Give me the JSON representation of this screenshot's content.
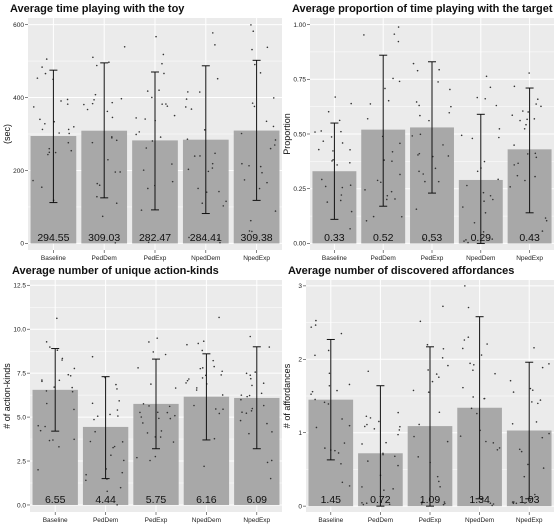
{
  "chart_data": [
    {
      "type": "bar",
      "title": "Average time playing with the toy",
      "xlabel": "",
      "ylabel": "(sec)",
      "categories": [
        "Baseline",
        "PedDem",
        "PedExp",
        "NpedDem",
        "NpedExp"
      ],
      "values": [
        294.55,
        309.03,
        282.47,
        284.41,
        309.38
      ],
      "value_labels": [
        "294.55",
        "309.03",
        "282.47",
        "284.41",
        "309.38"
      ],
      "error_low": [
        112,
        125,
        92,
        82,
        118
      ],
      "error_high": [
        475,
        495,
        470,
        487,
        502
      ],
      "ylim": [
        -18,
        618
      ],
      "yticks": [
        0,
        200,
        400,
        600
      ],
      "ytick_labels": [
        "0",
        "200",
        "400",
        "600"
      ],
      "grid": true,
      "points": "individual data points (jittered)"
    },
    {
      "type": "bar",
      "title": "Average proportion of time playing with the target",
      "xlabel": "",
      "ylabel": "Proportion",
      "categories": [
        "Baseline",
        "PedDem",
        "PedExp",
        "NpedDem",
        "NpedExp"
      ],
      "values": [
        0.33,
        0.52,
        0.53,
        0.29,
        0.43
      ],
      "value_labels": [
        "0.33",
        "0.52",
        "0.53",
        "0.29",
        "0.43"
      ],
      "error_low": [
        0.11,
        0.17,
        0.23,
        0.0,
        0.14
      ],
      "error_high": [
        0.55,
        0.86,
        0.83,
        0.59,
        0.71
      ],
      "ylim": [
        -0.03,
        1.03
      ],
      "yticks": [
        0,
        0.25,
        0.5,
        0.75,
        1.0
      ],
      "ytick_labels": [
        "0.00",
        "0.25",
        "0.50",
        "0.75",
        "1.00"
      ],
      "grid": true,
      "points": "individual data points (jittered)"
    },
    {
      "type": "bar",
      "title": "Average number of unique action-kinds",
      "xlabel": "",
      "ylabel": "# of action-kinds",
      "categories": [
        "Baseline",
        "PedDem",
        "PedExp",
        "NpedDem",
        "NpedExp"
      ],
      "values": [
        6.55,
        4.44,
        5.75,
        6.16,
        6.09
      ],
      "value_labels": [
        "6.55",
        "4.44",
        "5.75",
        "6.16",
        "6.09"
      ],
      "error_low": [
        4.2,
        1.5,
        3.2,
        3.7,
        3.2
      ],
      "error_high": [
        8.9,
        7.3,
        8.3,
        8.6,
        9.0
      ],
      "ylim": [
        -0.4,
        12.8
      ],
      "yticks": [
        0,
        2.5,
        5,
        7.5,
        10,
        12.5
      ],
      "ytick_labels": [
        "0.0",
        "2.5",
        "5.0",
        "7.5",
        "10.0",
        "12.5"
      ],
      "grid": true,
      "points": "individual data points (jittered)"
    },
    {
      "type": "bar",
      "title": "Average number of discovered affordances",
      "xlabel": "",
      "ylabel": "# of affordances",
      "categories": [
        "Baseline",
        "PedDem",
        "PedExp",
        "NpedDem",
        "NpedExp"
      ],
      "values": [
        1.45,
        0.72,
        1.09,
        1.34,
        1.03
      ],
      "value_labels": [
        "1.45",
        "0.72",
        "1.09",
        "1.34",
        "1.03"
      ],
      "error_low": [
        0.63,
        0.0,
        0.0,
        0.1,
        0.1
      ],
      "error_high": [
        2.27,
        1.64,
        2.17,
        2.58,
        1.96
      ],
      "ylim": [
        -0.08,
        3.08
      ],
      "yticks": [
        0,
        1,
        2,
        3
      ],
      "ytick_labels": [
        "0",
        "1",
        "2",
        "3"
      ],
      "grid": true,
      "points": "individual data points (jittered)"
    }
  ],
  "style": {
    "panel_bg": "#ebebeb",
    "grid_color": "#ffffff",
    "bar_color": "#a8a8a8",
    "point_color": "#333333",
    "errorbar_color": "#111111"
  }
}
